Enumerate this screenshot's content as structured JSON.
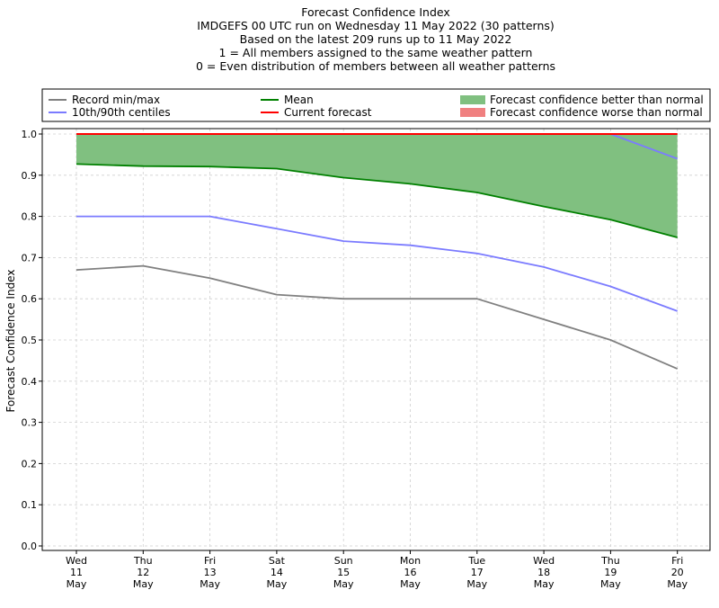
{
  "chart_data": {
    "type": "line",
    "title_lines": [
      "Forecast Confidence Index",
      "IMDGEFS 00 UTC run on Wednesday 11 May 2022 (30 patterns)",
      "Based on the latest 209 runs up to 11 May 2022",
      "1 = All members assigned to the same weather pattern",
      "0 = Even distribution of members between all weather patterns"
    ],
    "ylabel": "Forecast Confidence Index",
    "ylim": [
      0,
      1
    ],
    "yticks": [
      0.0,
      0.1,
      0.2,
      0.3,
      0.4,
      0.5,
      0.6,
      0.7,
      0.8,
      0.9,
      1.0
    ],
    "ytick_labels": [
      "0.0",
      "0.1",
      "0.2",
      "0.3",
      "0.4",
      "0.5",
      "0.6",
      "0.7",
      "0.8",
      "0.9",
      "1.0"
    ],
    "grid": true,
    "categories": [
      {
        "day": "Wed",
        "date": "11",
        "month": "May"
      },
      {
        "day": "Thu",
        "date": "12",
        "month": "May"
      },
      {
        "day": "Fri",
        "date": "13",
        "month": "May"
      },
      {
        "day": "Sat",
        "date": "14",
        "month": "May"
      },
      {
        "day": "Sun",
        "date": "15",
        "month": "May"
      },
      {
        "day": "Mon",
        "date": "16",
        "month": "May"
      },
      {
        "day": "Tue",
        "date": "17",
        "month": "May"
      },
      {
        "day": "Wed",
        "date": "18",
        "month": "May"
      },
      {
        "day": "Thu",
        "date": "19",
        "month": "May"
      },
      {
        "day": "Fri",
        "date": "20",
        "month": "May"
      }
    ],
    "legend_placement": "top",
    "legend": [
      {
        "label": "Record min/max",
        "kind": "line",
        "color": "#808080"
      },
      {
        "label": "Mean",
        "kind": "line",
        "color": "#008000"
      },
      {
        "label": "Forecast confidence better than normal",
        "kind": "patch",
        "color": "#80c080"
      },
      {
        "label": "10th/90th centiles",
        "kind": "line",
        "color": "#7b7bff"
      },
      {
        "label": "Current forecast",
        "kind": "line",
        "color": "#ff0000"
      },
      {
        "label": "Forecast confidence worse than normal",
        "kind": "patch",
        "color": "#f08080"
      }
    ],
    "series": [
      {
        "key": "record_max",
        "color": "#808080",
        "values": [
          1.0,
          1.0,
          1.0,
          1.0,
          1.0,
          1.0,
          1.0,
          1.0,
          1.0,
          1.0
        ]
      },
      {
        "key": "record_min",
        "color": "#808080",
        "values": [
          0.67,
          0.68,
          0.65,
          0.61,
          0.6,
          0.6,
          0.6,
          0.55,
          0.5,
          0.43
        ]
      },
      {
        "key": "centile_90",
        "color": "#7b7bff",
        "values": [
          1.0,
          1.0,
          1.0,
          1.0,
          1.0,
          1.0,
          1.0,
          1.0,
          1.0,
          0.94
        ]
      },
      {
        "key": "centile_10",
        "color": "#7b7bff",
        "values": [
          0.8,
          0.8,
          0.8,
          0.77,
          0.74,
          0.73,
          0.71,
          0.677,
          0.63,
          0.57
        ]
      },
      {
        "key": "mean",
        "color": "#008000",
        "values": [
          0.927,
          0.922,
          0.921,
          0.916,
          0.894,
          0.879,
          0.858,
          0.824,
          0.792,
          0.749
        ]
      },
      {
        "key": "current",
        "color": "#ff0000",
        "values": [
          1.0,
          1.0,
          1.0,
          1.0,
          1.0,
          1.0,
          1.0,
          1.0,
          1.0,
          1.0
        ]
      }
    ],
    "fill_better": {
      "color": "#80c080",
      "between": [
        "mean",
        "current"
      ]
    }
  }
}
